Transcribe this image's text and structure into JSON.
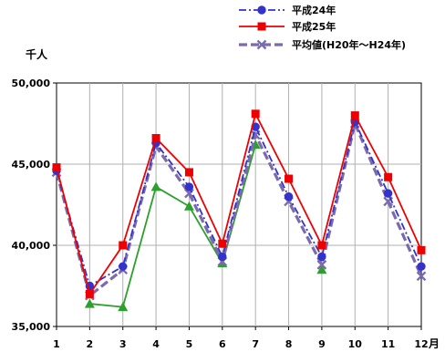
{
  "chart_data": {
    "type": "line",
    "ylabel": "千人",
    "xlabel": "月",
    "ylim": [
      35000,
      50000
    ],
    "yticks": [
      35000,
      40000,
      45000,
      50000
    ],
    "ytick_labels": [
      "35,000",
      "40,000",
      "45,000",
      "50,000"
    ],
    "x": [
      1,
      2,
      3,
      4,
      5,
      6,
      7,
      8,
      9,
      10,
      11,
      12
    ],
    "x_labels": [
      "1",
      "2",
      "3",
      "4",
      "5",
      "6",
      "7",
      "8",
      "9",
      "10",
      "11",
      "12"
    ],
    "grid": true,
    "legend_position": "top-right",
    "series": [
      {
        "name": "平成24年",
        "color": "#3333cc",
        "marker": "circle",
        "line_style": "dash-dot",
        "values": [
          44600,
          37500,
          38700,
          46300,
          43600,
          39300,
          47300,
          43000,
          39300,
          47600,
          43200,
          38700
        ]
      },
      {
        "name": "平成25年",
        "color": "#ee0000",
        "marker": "square",
        "line_style": "solid",
        "values": [
          44800,
          37000,
          40000,
          46600,
          44500,
          40100,
          48100,
          44100,
          40000,
          48000,
          44200,
          39700
        ]
      },
      {
        "name": "平均値(H20年〜H24年)",
        "color": "#7b6bae",
        "marker": "x",
        "line_style": "dashed",
        "values": [
          44500,
          36900,
          38500,
          46100,
          43200,
          39000,
          46800,
          42700,
          38800,
          47500,
          42700,
          38100
        ]
      },
      {
        "name": "",
        "color": "#2ca02c",
        "marker": "triangle",
        "line_style": "solid",
        "values": [
          null,
          36400,
          36200,
          43600,
          42400,
          38900,
          46200,
          null,
          38500,
          null,
          null,
          null
        ]
      }
    ]
  }
}
